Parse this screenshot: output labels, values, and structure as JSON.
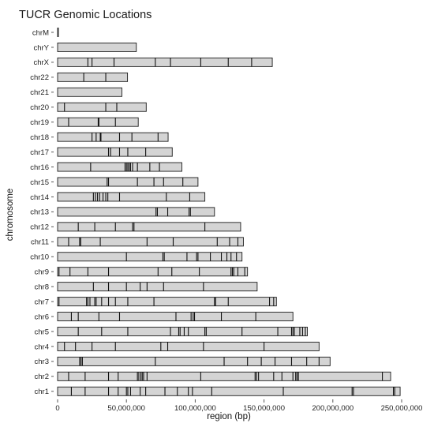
{
  "chart_data": {
    "type": "bar",
    "orientation": "horizontal",
    "title": "TUCR Genomic Locations",
    "xlabel": "region (bp)",
    "ylabel": "chromosome",
    "xlim": [
      0,
      250000000
    ],
    "x_ticks": [
      0,
      50000000,
      100000000,
      150000000,
      200000000,
      250000000
    ],
    "x_tick_labels": [
      "0",
      "50,000,000",
      "100,000,000",
      "150,000,000",
      "200,000,000",
      "250,000,000"
    ],
    "grid": false,
    "legend": "none",
    "bar_fill": "#d4d4d4",
    "bar_stroke": "#1a1a1a",
    "marker_color": "#111111",
    "chromosomes": [
      {
        "name": "chrM",
        "length": 16569,
        "tucrs": []
      },
      {
        "name": "chrY",
        "length": 57200000,
        "tucrs": []
      },
      {
        "name": "chrX",
        "length": 156000000,
        "tucrs": [
          22000000,
          25000000,
          41000000,
          71000000,
          82000000,
          104000000,
          124000000,
          141000000
        ]
      },
      {
        "name": "chr22",
        "length": 50800000,
        "tucrs": [
          19000000,
          35000000
        ]
      },
      {
        "name": "chr21",
        "length": 46700000,
        "tucrs": []
      },
      {
        "name": "chr20",
        "length": 64400000,
        "tucrs": [
          5000000,
          35000000,
          43000000
        ]
      },
      {
        "name": "chr19",
        "length": 58600000,
        "tucrs": [
          8000000,
          29500000,
          30000000,
          42000000
        ]
      },
      {
        "name": "chr18",
        "length": 80300000,
        "tucrs": [
          25000000,
          28000000,
          31000000,
          31500000,
          45000000,
          54000000,
          73000000
        ]
      },
      {
        "name": "chr17",
        "length": 83300000,
        "tucrs": [
          37000000,
          38500000,
          45000000,
          51000000,
          64000000
        ]
      },
      {
        "name": "chr16",
        "length": 90300000,
        "tucrs": [
          24000000,
          49000000,
          50000000,
          51000000,
          52000000,
          53000000,
          54500000,
          58000000,
          67000000,
          74000000
        ]
      },
      {
        "name": "chr15",
        "length": 102000000,
        "tucrs": [
          36000000,
          37000000,
          58000000,
          70000000,
          77000000,
          91000000
        ]
      },
      {
        "name": "chr14",
        "length": 107000000,
        "tucrs": [
          26000000,
          27500000,
          29000000,
          30500000,
          33000000,
          35000000,
          36500000,
          45000000,
          79000000,
          96000000
        ]
      },
      {
        "name": "chr13",
        "length": 114000000,
        "tucrs": [
          71500000,
          72500000,
          80000000,
          95500000,
          96500000
        ]
      },
      {
        "name": "chr12",
        "length": 133000000,
        "tucrs": [
          15000000,
          27000000,
          42000000,
          54500000,
          55500000,
          107000000
        ]
      },
      {
        "name": "chr11",
        "length": 135000000,
        "tucrs": [
          8000000,
          16000000,
          16800000,
          31000000,
          65000000,
          84000000,
          116000000,
          125000000,
          131000000
        ]
      },
      {
        "name": "chr10",
        "length": 134000000,
        "tucrs": [
          50000000,
          76500000,
          77500000,
          94000000,
          101000000,
          102000000,
          111000000,
          119000000,
          123000000,
          126000000,
          130000000
        ]
      },
      {
        "name": "chr9",
        "length": 138000000,
        "tucrs": [
          1000000,
          9000000,
          22000000,
          37000000,
          73000000,
          83000000,
          103000000,
          126000000,
          127000000,
          128000000,
          131000000,
          136000000
        ]
      },
      {
        "name": "chr8",
        "length": 145000000,
        "tucrs": [
          26000000,
          37000000,
          50000000,
          60000000,
          65000000,
          77000000,
          106000000
        ]
      },
      {
        "name": "chr7",
        "length": 159000000,
        "tucrs": [
          1000000,
          21000000,
          22000000,
          23500000,
          27000000,
          28000000,
          32000000,
          37000000,
          42000000,
          51000000,
          70000000,
          114000000,
          114800000,
          124000000,
          154000000,
          157000000
        ]
      },
      {
        "name": "chr6",
        "length": 171000000,
        "tucrs": [
          10000000,
          15000000,
          30000000,
          45000000,
          86000000,
          97000000,
          98500000,
          99500000,
          119000000,
          144000000
        ]
      },
      {
        "name": "chr5",
        "length": 181500000,
        "tucrs": [
          15000000,
          32000000,
          51000000,
          82000000,
          88000000,
          89000000,
          92000000,
          95000000,
          107000000,
          108000000,
          134000000,
          160000000,
          170000000,
          171000000,
          172000000,
          176000000,
          178000000,
          180000000
        ]
      },
      {
        "name": "chr4",
        "length": 190000000,
        "tucrs": [
          5000000,
          13000000,
          25000000,
          42000000,
          75000000,
          80000000,
          106000000,
          150000000
        ]
      },
      {
        "name": "chr3",
        "length": 198000000,
        "tucrs": [
          16000000,
          17000000,
          18000000,
          71000000,
          121000000,
          138000000,
          148000000,
          158000000,
          170000000,
          181000000,
          190000000
        ]
      },
      {
        "name": "chr2",
        "length": 242000000,
        "tucrs": [
          8000000,
          20000000,
          37000000,
          44000000,
          58000000,
          59000000,
          60500000,
          61500000,
          62500000,
          65000000,
          104000000,
          143500000,
          144500000,
          146000000,
          157000000,
          163000000,
          171000000,
          173000000,
          174000000,
          175000000,
          236000000
        ]
      },
      {
        "name": "chr1",
        "length": 248900000,
        "tucrs": [
          10000000,
          20000000,
          37000000,
          44000000,
          50000000,
          51000000,
          53000000,
          60000000,
          64000000,
          78000000,
          87000000,
          95000000,
          98000000,
          112000000,
          164000000,
          214000000,
          215000000,
          244000000,
          245000000
        ]
      }
    ]
  }
}
